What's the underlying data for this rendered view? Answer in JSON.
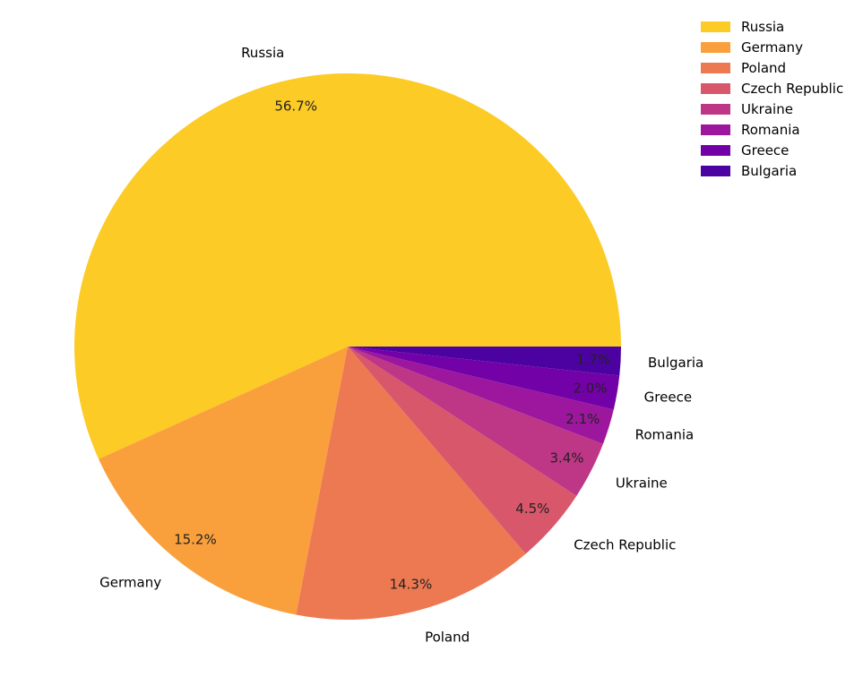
{
  "chart_data": {
    "type": "pie",
    "title": "",
    "categories": [
      "Russia",
      "Germany",
      "Poland",
      "Czech Republic",
      "Ukraine",
      "Romania",
      "Greece",
      "Bulgaria"
    ],
    "values": [
      56.7,
      15.2,
      14.3,
      4.5,
      3.4,
      2.1,
      2.0,
      1.7
    ],
    "value_labels": [
      "56.7%",
      "15.2%",
      "14.3%",
      "4.5%",
      "3.4%",
      "2.1%",
      "2.0%",
      "1.7%"
    ],
    "colors": [
      "#fccb25",
      "#f9a03c",
      "#ed7953",
      "#d8576b",
      "#bd3786",
      "#9c179e",
      "#7301a8",
      "#4c02a1"
    ],
    "start_angle": 0,
    "direction": "counterclockwise",
    "legend_position": "upper right"
  },
  "legend": {
    "items": [
      {
        "label": "Russia",
        "color": "#fccb25"
      },
      {
        "label": "Germany",
        "color": "#f9a03c"
      },
      {
        "label": "Poland",
        "color": "#ed7953"
      },
      {
        "label": "Czech Republic",
        "color": "#d8576b"
      },
      {
        "label": "Ukraine",
        "color": "#bd3786"
      },
      {
        "label": "Romania",
        "color": "#9c179e"
      },
      {
        "label": "Greece",
        "color": "#7301a8"
      },
      {
        "label": "Bulgaria",
        "color": "#4c02a1"
      }
    ]
  }
}
